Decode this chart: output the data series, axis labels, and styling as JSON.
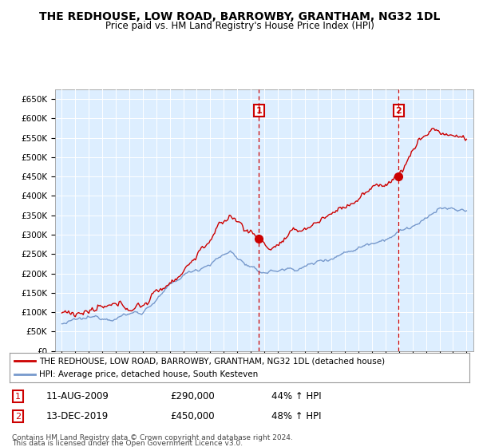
{
  "title": "THE REDHOUSE, LOW ROAD, BARROWBY, GRANTHAM, NG32 1DL",
  "subtitle": "Price paid vs. HM Land Registry's House Price Index (HPI)",
  "ylabel_ticks": [
    "£0",
    "£50K",
    "£100K",
    "£150K",
    "£200K",
    "£250K",
    "£300K",
    "£350K",
    "£400K",
    "£450K",
    "£500K",
    "£550K",
    "£600K",
    "£650K"
  ],
  "ylim": [
    0,
    675000
  ],
  "ytick_vals": [
    0,
    50000,
    100000,
    150000,
    200000,
    250000,
    300000,
    350000,
    400000,
    450000,
    500000,
    550000,
    600000,
    650000
  ],
  "sale1_x": 2009.62,
  "sale1_y": 290000,
  "sale1_label": "1",
  "sale1_date": "11-AUG-2009",
  "sale1_price": "£290,000",
  "sale1_hpi": "44% ↑ HPI",
  "sale2_x": 2019.96,
  "sale2_y": 450000,
  "sale2_label": "2",
  "sale2_date": "13-DEC-2019",
  "sale2_price": "£450,000",
  "sale2_hpi": "48% ↑ HPI",
  "red_color": "#cc0000",
  "blue_color": "#7799cc",
  "bg_color": "#ddeeff",
  "legend_line1": "THE REDHOUSE, LOW ROAD, BARROWBY, GRANTHAM, NG32 1DL (detached house)",
  "legend_line2": "HPI: Average price, detached house, South Kesteven",
  "footnote1": "Contains HM Land Registry data © Crown copyright and database right 2024.",
  "footnote2": "This data is licensed under the Open Government Licence v3.0.",
  "xlim_start": 1994.5,
  "xlim_end": 2025.5
}
